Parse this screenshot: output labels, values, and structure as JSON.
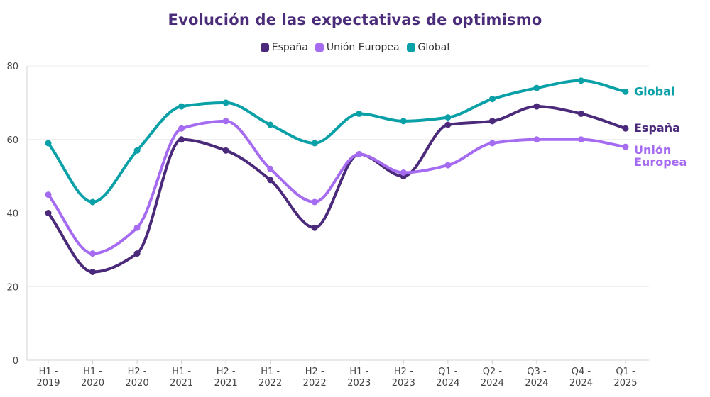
{
  "chart_data": {
    "type": "line",
    "title": "Evolución de las expectativas de optimismo",
    "categories": [
      [
        "H1 -",
        "2019"
      ],
      [
        "H1 -",
        "2020"
      ],
      [
        "H2 -",
        "2020"
      ],
      [
        "H1 -",
        "2021"
      ],
      [
        "H2 -",
        "2021"
      ],
      [
        "H1 -",
        "2022"
      ],
      [
        "H2 -",
        "2022"
      ],
      [
        "H1 -",
        "2023"
      ],
      [
        "H2 -",
        "2023"
      ],
      [
        "Q1 -",
        "2024"
      ],
      [
        "Q2 -",
        "2024"
      ],
      [
        "Q3 -",
        "2024"
      ],
      [
        "Q4 -",
        "2024"
      ],
      [
        "Q1 -",
        "2025"
      ]
    ],
    "ylim": [
      0,
      80
    ],
    "yticks": [
      0,
      20,
      40,
      60,
      80
    ],
    "grid": true,
    "legend_position": "top-center",
    "series": [
      {
        "name": "España",
        "color": "#4b2a7b",
        "end_label": [
          "España"
        ],
        "values": [
          40,
          24,
          29,
          60,
          57,
          49,
          36,
          56,
          50,
          64,
          65,
          69,
          67,
          63
        ]
      },
      {
        "name": "Unión Europea",
        "color": "#a56bf0",
        "end_label": [
          "Unión",
          "Europea"
        ],
        "values": [
          45,
          29,
          36,
          63,
          65,
          52,
          43,
          56,
          51,
          53,
          59,
          60,
          60,
          58
        ]
      },
      {
        "name": "Global",
        "color": "#0aa0a8",
        "end_label": [
          "Global"
        ],
        "values": [
          59,
          43,
          57,
          69,
          70,
          64,
          59,
          67,
          65,
          66,
          71,
          74,
          76,
          73
        ]
      }
    ]
  }
}
